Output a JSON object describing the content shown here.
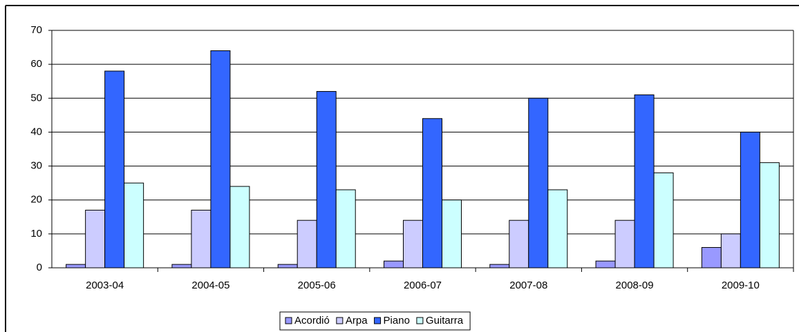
{
  "chart_data": {
    "type": "bar",
    "categories": [
      "2003-04",
      "2004-05",
      "2005-06",
      "2006-07",
      "2007-08",
      "2008-09",
      "2009-10"
    ],
    "series": [
      {
        "name": "Acordió",
        "color": "#9999ff",
        "values": [
          1,
          1,
          1,
          2,
          1,
          2,
          6
        ]
      },
      {
        "name": "Arpa",
        "color": "#ccccff",
        "values": [
          17,
          17,
          14,
          14,
          14,
          14,
          10
        ]
      },
      {
        "name": "Piano",
        "color": "#3366ff",
        "values": [
          58,
          64,
          52,
          44,
          50,
          51,
          40
        ]
      },
      {
        "name": "Guitarra",
        "color": "#ccffff",
        "values": [
          25,
          24,
          23,
          20,
          23,
          28,
          31
        ]
      }
    ],
    "ylim": [
      0,
      70
    ],
    "yticks": [
      0,
      10,
      20,
      30,
      40,
      50,
      60,
      70
    ],
    "grid": true,
    "legend": "bottom"
  }
}
